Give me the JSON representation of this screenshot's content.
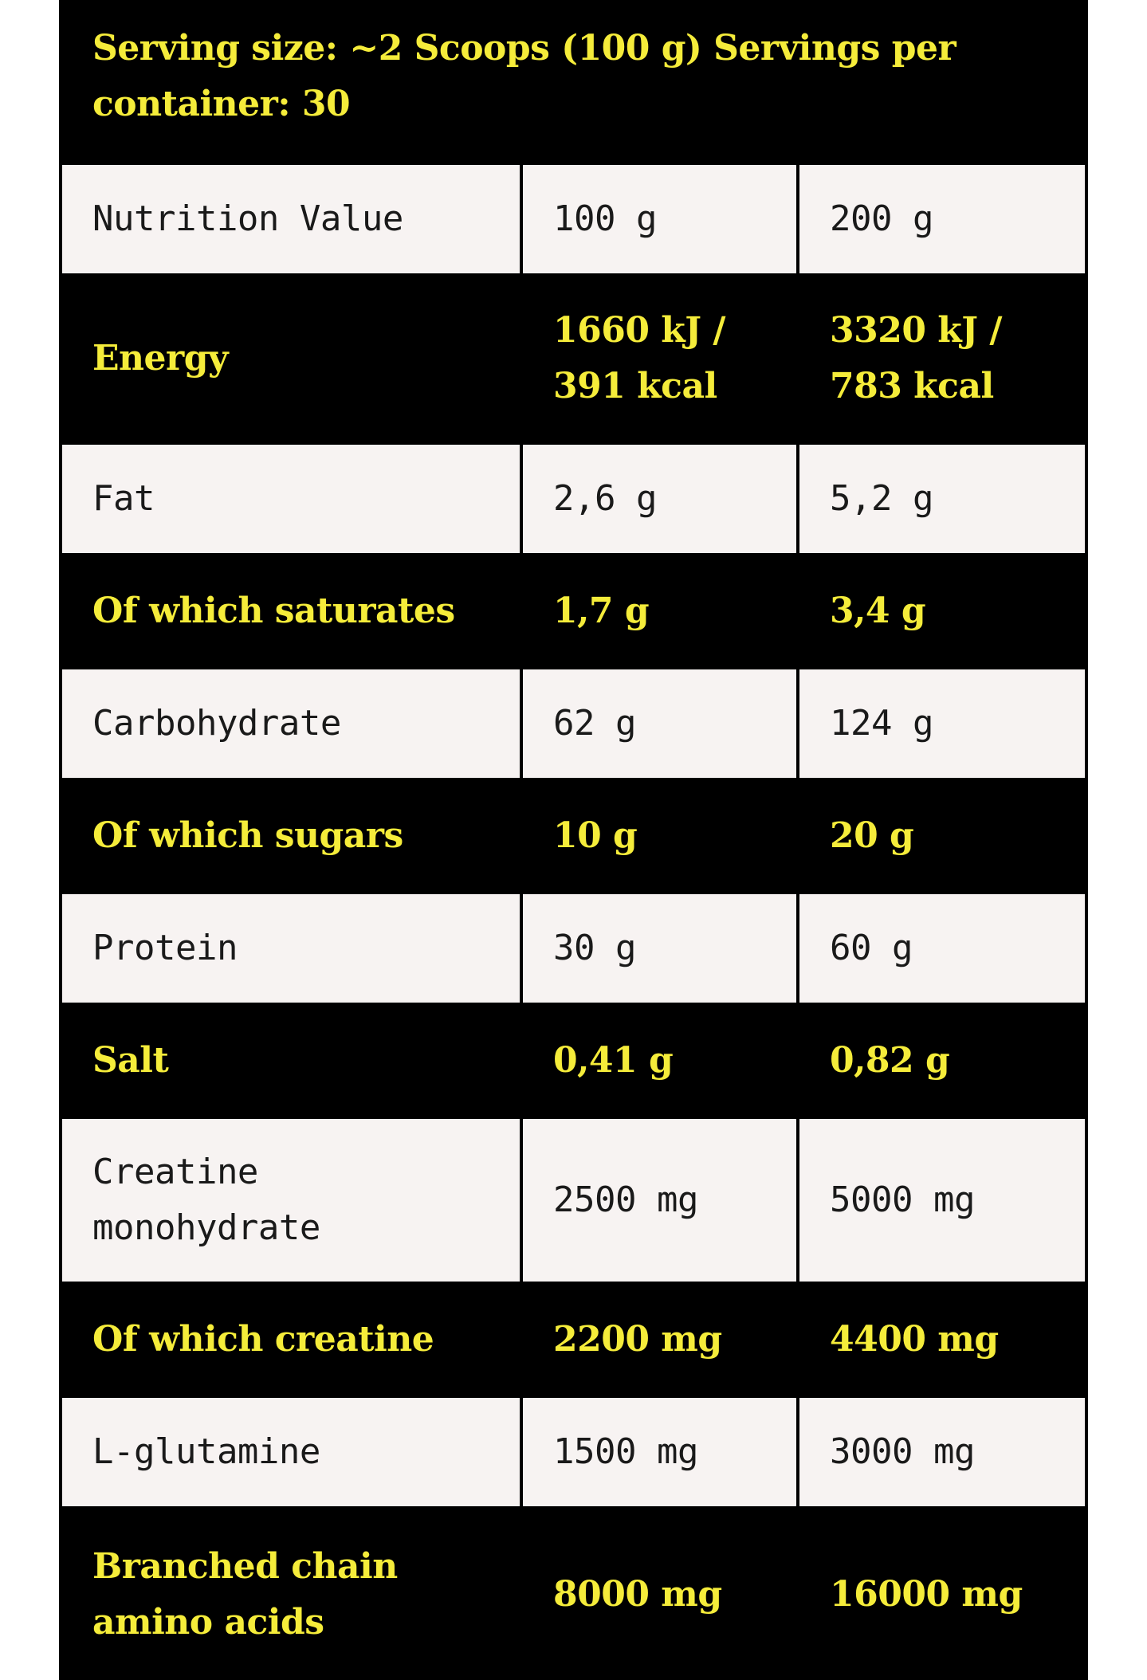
{
  "serving_info": "Serving size: ~2 Scoops (100 g) Servings per container: 30",
  "table": {
    "rows": [
      {
        "label": "Nutrition Value",
        "col_100g": "100 g",
        "col_200g": "200 g",
        "style": "light"
      },
      {
        "label": "Energy",
        "col_100g": "1660 kJ / 391 kcal",
        "col_200g": "3320 kJ / 783 kcal",
        "style": "dark"
      },
      {
        "label": "Fat",
        "col_100g": "2,6 g",
        "col_200g": "5,2 g",
        "style": "light"
      },
      {
        "label": "Of which saturates",
        "col_100g": "1,7 g",
        "col_200g": "3,4 g",
        "style": "dark"
      },
      {
        "label": "Carbohydrate",
        "col_100g": "62 g",
        "col_200g": "124 g",
        "style": "light"
      },
      {
        "label": "Of which sugars",
        "col_100g": "10 g",
        "col_200g": "20 g",
        "style": "dark"
      },
      {
        "label": "Protein",
        "col_100g": "30 g",
        "col_200g": "60 g",
        "style": "light"
      },
      {
        "label": "Salt",
        "col_100g": "0,41 g",
        "col_200g": "0,82 g",
        "style": "dark"
      },
      {
        "label": "Creatine monohydrate",
        "col_100g": "2500 mg",
        "col_200g": "5000 mg",
        "style": "light"
      },
      {
        "label": "Of which creatine",
        "col_100g": "2200 mg",
        "col_200g": "4400 mg",
        "style": "dark"
      },
      {
        "label": "L-glutamine",
        "col_100g": "1500 mg",
        "col_200g": "3000 mg",
        "style": "light"
      },
      {
        "label": "Branched chain amino acids",
        "col_100g": "8000 mg",
        "col_200g": "16000 mg",
        "style": "dark"
      }
    ]
  },
  "colors": {
    "background_dark": "#000000",
    "background_light": "#f7f3f2",
    "text_accent": "#f5ec3a",
    "text_dark": "#1a1a1a"
  }
}
